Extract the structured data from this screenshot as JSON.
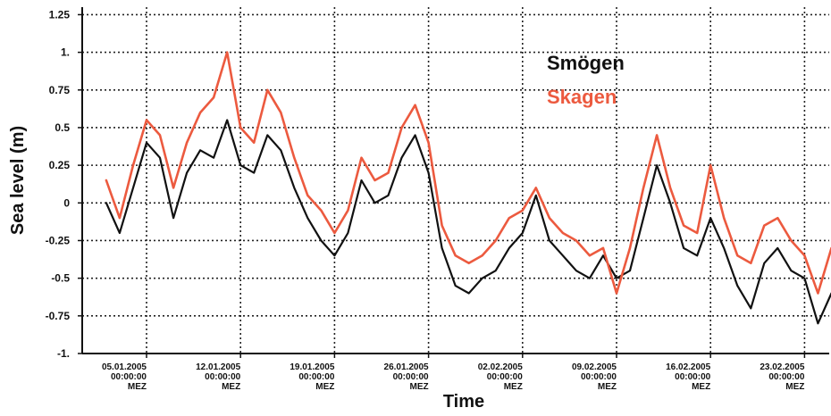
{
  "chart_data": {
    "type": "line",
    "xlabel": "Time",
    "ylabel": "Sea level (m)",
    "ylim": [
      -1.0,
      1.3
    ],
    "yticks": [
      -1.0,
      -0.75,
      -0.5,
      -0.25,
      0,
      0.25,
      0.5,
      0.75,
      1.0,
      1.25
    ],
    "ytick_labels": [
      "-1.",
      "-0.75",
      "-0.5",
      "-0.25",
      "0",
      "0.25",
      "0.5",
      "0.75",
      "1.",
      "1.25"
    ],
    "grid": true,
    "legend_position": "top-right",
    "x_ticks": [
      {
        "date": "05.01.2005",
        "time": "00:00:00",
        "tz": "MEZ"
      },
      {
        "date": "12.01.2005",
        "time": "00:00:00",
        "tz": "MEZ"
      },
      {
        "date": "19.01.2005",
        "time": "00:00:00",
        "tz": "MEZ"
      },
      {
        "date": "26.01.2005",
        "time": "00:00:00",
        "tz": "MEZ"
      },
      {
        "date": "02.02.2005",
        "time": "00:00:00",
        "tz": "MEZ"
      },
      {
        "date": "09.02.2005",
        "time": "00:00:00",
        "tz": "MEZ"
      },
      {
        "date": "16.02.2005",
        "time": "00:00:00",
        "tz": "MEZ"
      },
      {
        "date": "23.02.2005",
        "time": "00:00:00",
        "tz": "MEZ"
      }
    ],
    "series": [
      {
        "name": "Smögen",
        "color": "#111111",
        "x": [
          "02.01.2005",
          "03.01.2005",
          "04.01.2005",
          "05.01.2005",
          "06.01.2005",
          "07.01.2005",
          "08.01.2005",
          "09.01.2005",
          "10.01.2005",
          "11.01.2005",
          "12.01.2005",
          "13.01.2005",
          "14.01.2005",
          "15.01.2005",
          "16.01.2005",
          "17.01.2005",
          "18.01.2005",
          "19.01.2005",
          "20.01.2005",
          "21.01.2005",
          "22.01.2005",
          "23.01.2005",
          "24.01.2005",
          "25.01.2005",
          "26.01.2005",
          "27.01.2005",
          "28.01.2005",
          "29.01.2005",
          "30.01.2005",
          "31.01.2005",
          "01.02.2005",
          "02.02.2005",
          "03.02.2005",
          "04.02.2005",
          "05.02.2005",
          "06.02.2005",
          "07.02.2005",
          "08.02.2005",
          "09.02.2005",
          "10.02.2005",
          "11.02.2005",
          "12.02.2005",
          "13.02.2005",
          "14.02.2005",
          "15.02.2005",
          "16.02.2005",
          "17.02.2005",
          "18.02.2005",
          "19.02.2005",
          "20.02.2005",
          "21.02.2005",
          "22.02.2005",
          "23.02.2005",
          "24.02.2005",
          "25.02.2005"
        ],
        "values": [
          0.0,
          -0.2,
          0.1,
          0.4,
          0.3,
          -0.1,
          0.2,
          0.35,
          0.3,
          0.55,
          0.25,
          0.2,
          0.45,
          0.35,
          0.1,
          -0.1,
          -0.25,
          -0.35,
          -0.2,
          0.15,
          0.0,
          0.05,
          0.3,
          0.45,
          0.2,
          -0.3,
          -0.55,
          -0.6,
          -0.5,
          -0.45,
          -0.3,
          -0.2,
          0.05,
          -0.25,
          -0.35,
          -0.45,
          -0.5,
          -0.35,
          -0.5,
          -0.45,
          -0.1,
          0.25,
          0.0,
          -0.3,
          -0.35,
          -0.1,
          -0.3,
          -0.55,
          -0.7,
          -0.4,
          -0.3,
          -0.45,
          -0.5,
          -0.8,
          -0.6
        ]
      },
      {
        "name": "Skagen",
        "color": "#ec5a3f",
        "x": [
          "02.01.2005",
          "03.01.2005",
          "04.01.2005",
          "05.01.2005",
          "06.01.2005",
          "07.01.2005",
          "08.01.2005",
          "09.01.2005",
          "10.01.2005",
          "11.01.2005",
          "12.01.2005",
          "13.01.2005",
          "14.01.2005",
          "15.01.2005",
          "16.01.2005",
          "17.01.2005",
          "18.01.2005",
          "19.01.2005",
          "20.01.2005",
          "21.01.2005",
          "22.01.2005",
          "23.01.2005",
          "24.01.2005",
          "25.01.2005",
          "26.01.2005",
          "27.01.2005",
          "28.01.2005",
          "29.01.2005",
          "30.01.2005",
          "31.01.2005",
          "01.02.2005",
          "02.02.2005",
          "03.02.2005",
          "04.02.2005",
          "05.02.2005",
          "06.02.2005",
          "07.02.2005",
          "08.02.2005",
          "09.02.2005",
          "10.02.2005",
          "11.02.2005",
          "12.02.2005",
          "13.02.2005",
          "14.02.2005",
          "15.02.2005",
          "16.02.2005",
          "17.02.2005",
          "18.02.2005",
          "19.02.2005",
          "20.02.2005",
          "21.02.2005",
          "22.02.2005",
          "23.02.2005",
          "24.02.2005",
          "25.02.2005"
        ],
        "values": [
          0.15,
          -0.1,
          0.25,
          0.55,
          0.45,
          0.1,
          0.4,
          0.6,
          0.7,
          1.0,
          0.5,
          0.4,
          0.75,
          0.6,
          0.3,
          0.05,
          -0.05,
          -0.2,
          -0.05,
          0.3,
          0.15,
          0.2,
          0.5,
          0.65,
          0.4,
          -0.15,
          -0.35,
          -0.4,
          -0.35,
          -0.25,
          -0.1,
          -0.05,
          0.1,
          -0.1,
          -0.2,
          -0.25,
          -0.35,
          -0.3,
          -0.6,
          -0.3,
          0.1,
          0.45,
          0.1,
          -0.15,
          -0.2,
          0.25,
          -0.1,
          -0.35,
          -0.4,
          -0.15,
          -0.1,
          -0.25,
          -0.35,
          -0.6,
          -0.3
        ]
      }
    ]
  }
}
